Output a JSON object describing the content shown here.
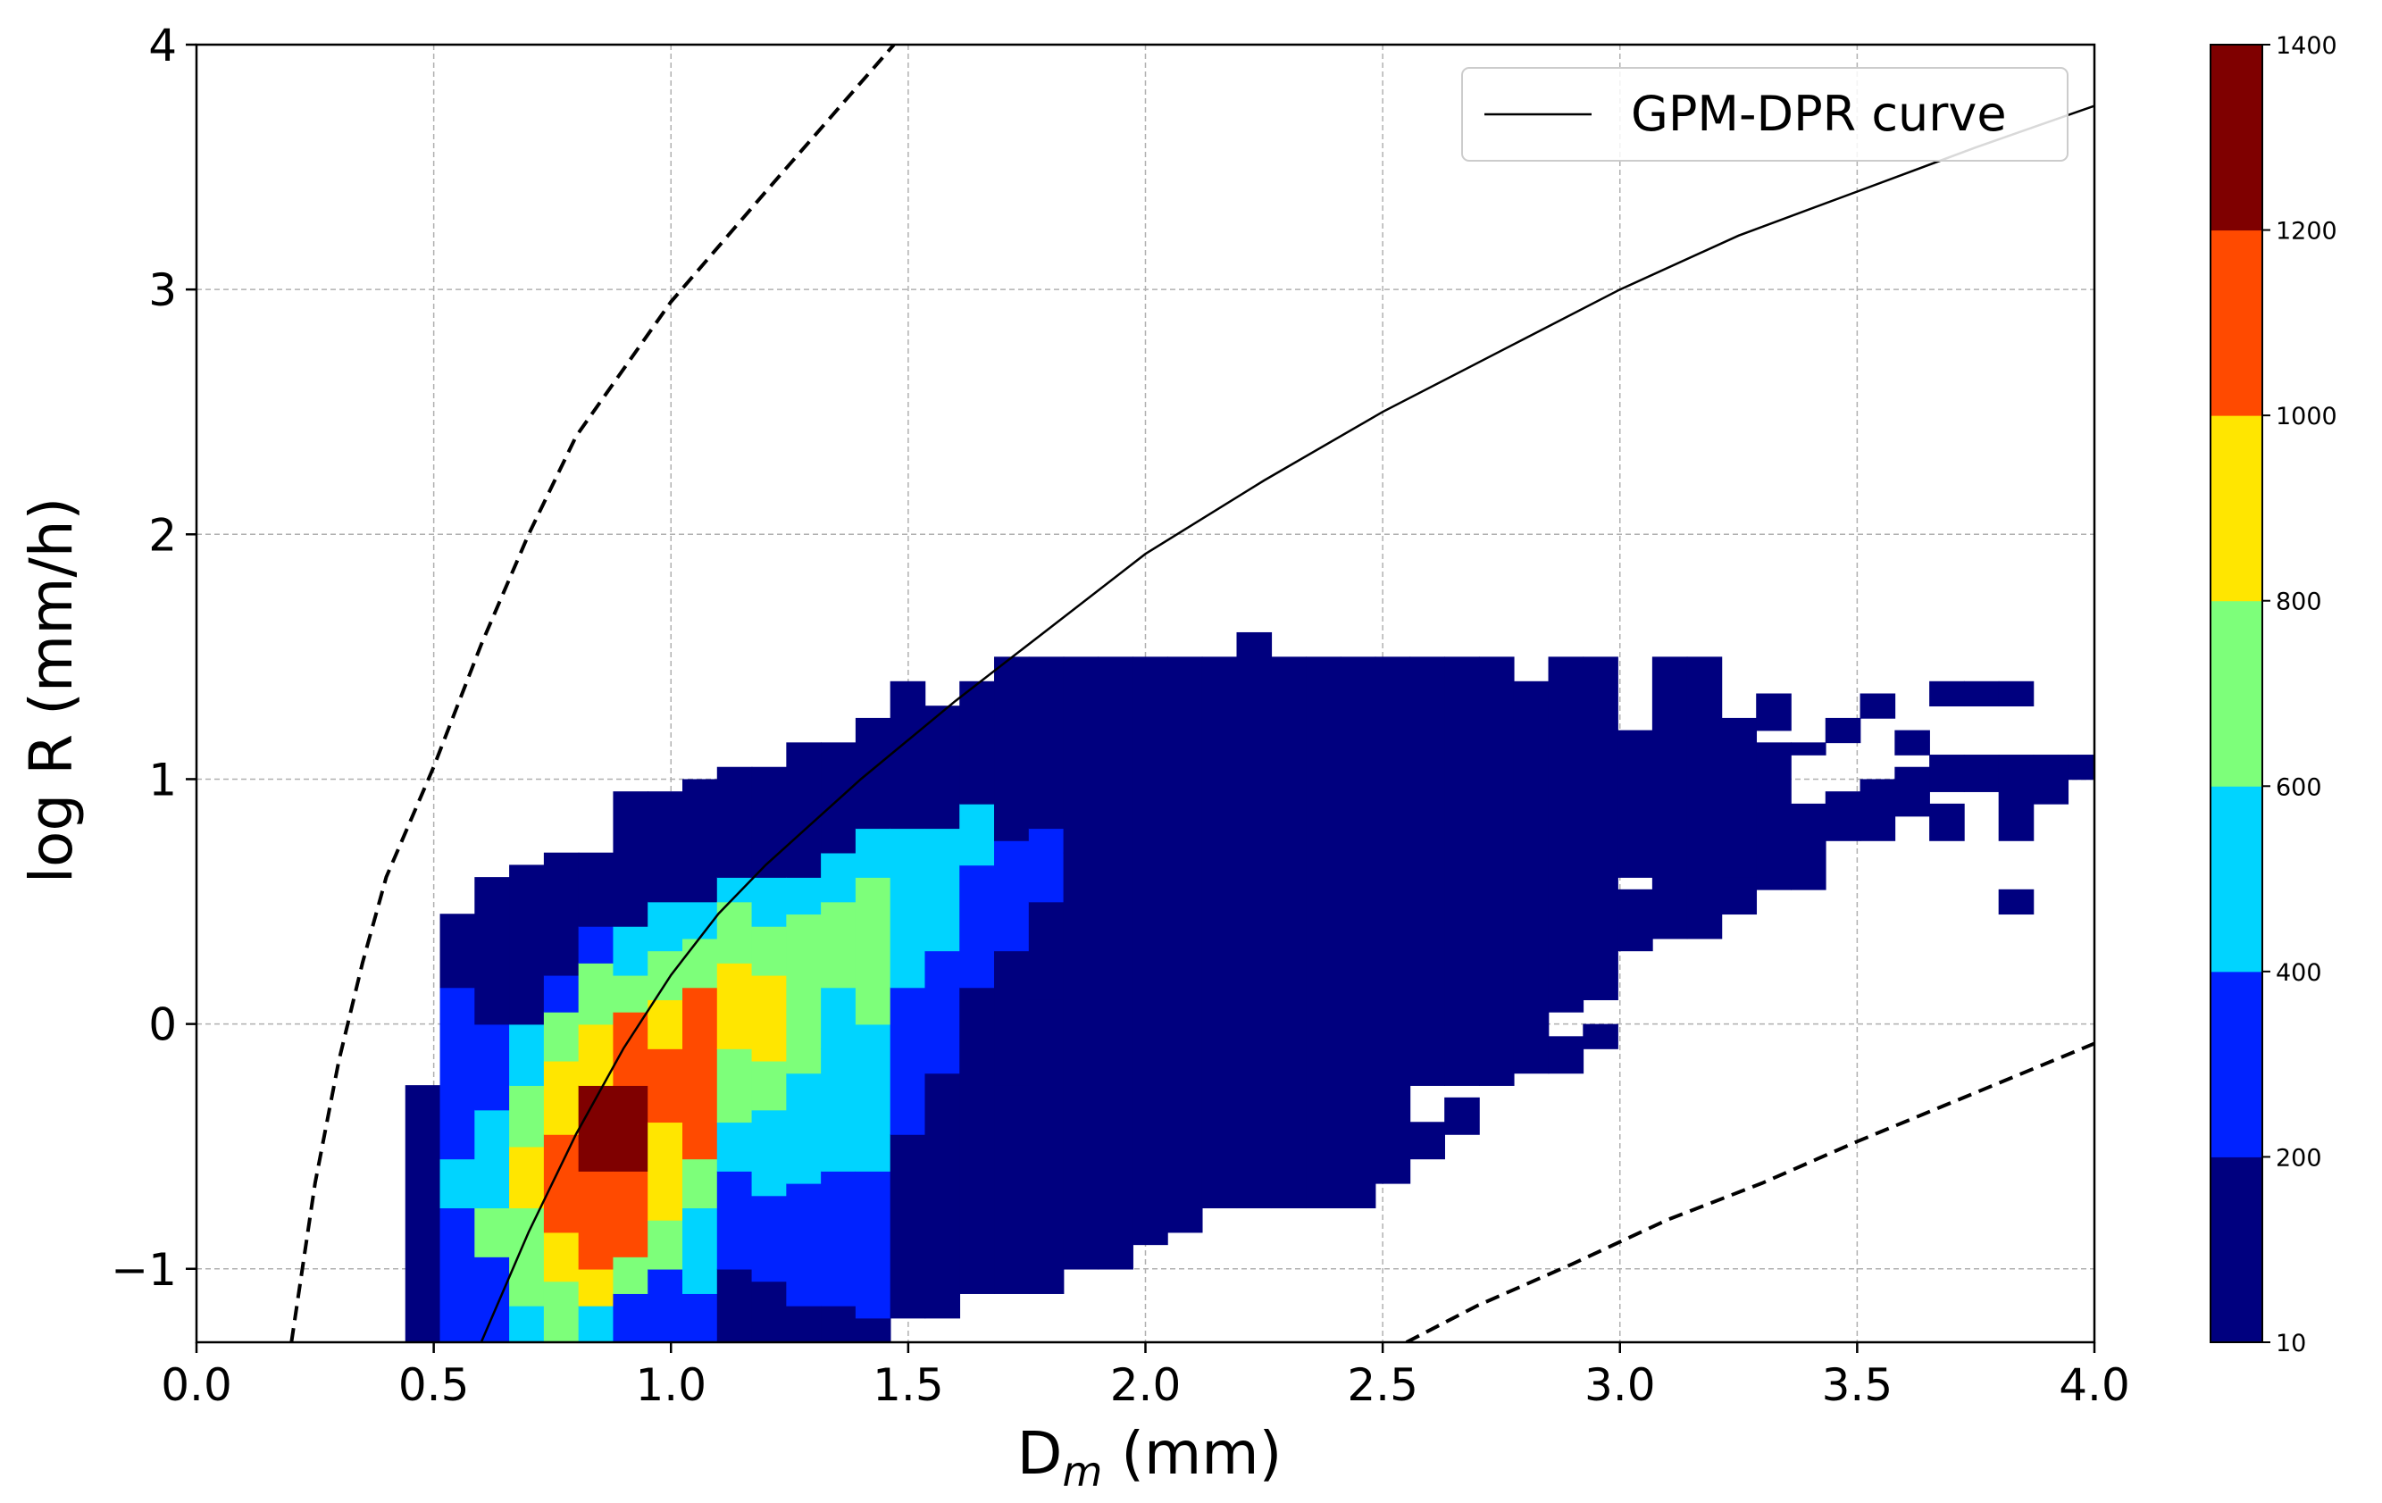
{
  "chart_data": {
    "type": "heatmap",
    "title": "",
    "xlabel_main": "D",
    "xlabel_sub": "m",
    "xlabel_unit": " (mm)",
    "ylabel": "log R (mm/h)",
    "xlim": [
      0.0,
      4.0
    ],
    "ylim": [
      -1.3,
      4.0
    ],
    "x_ticks": [
      0.0,
      0.5,
      1.0,
      1.5,
      2.0,
      2.5,
      3.0,
      3.5,
      4.0
    ],
    "x_tick_labels": [
      "0.0",
      "0.5",
      "1.0",
      "1.5",
      "2.0",
      "2.5",
      "3.0",
      "3.5",
      "4.0"
    ],
    "y_ticks": [
      -1,
      0,
      1,
      2,
      3,
      4
    ],
    "y_tick_labels": [
      "−1",
      "0",
      "1",
      "2",
      "3",
      "4"
    ],
    "grid": true,
    "legend": {
      "position": "top-right",
      "entries": [
        {
          "label": "GPM-DPR curve",
          "style": "solid"
        }
      ]
    },
    "colorbar": {
      "bounds": [
        10,
        200,
        400,
        600,
        800,
        1000,
        1200,
        1400
      ],
      "labels": [
        "10",
        "200",
        "400",
        "600",
        "800",
        "1000",
        "1200",
        "1400"
      ],
      "colors": [
        "#00007f",
        "#0022ff",
        "#00d4ff",
        "#7dff7a",
        "#ffe600",
        "#ff4a00",
        "#7f0000"
      ]
    },
    "bins": {
      "x_start": 0.44,
      "x_width": 0.073,
      "y_start": -1.3,
      "y_height": 0.1
    },
    "columns": [
      {
        "rows": [
          [
            -1.3,
            -0.25,
            0
          ]
        ]
      },
      {
        "rows": [
          [
            -1.3,
            -0.75,
            1
          ],
          [
            -0.75,
            -0.55,
            2
          ],
          [
            -0.55,
            0.15,
            1
          ],
          [
            0.15,
            0.45,
            0
          ]
        ]
      },
      {
        "rows": [
          [
            -1.3,
            -0.95,
            1
          ],
          [
            -0.95,
            -0.75,
            3
          ],
          [
            -0.75,
            -0.35,
            2
          ],
          [
            -0.35,
            0.0,
            1
          ],
          [
            0.0,
            0.6,
            0
          ]
        ]
      },
      {
        "rows": [
          [
            -1.3,
            -1.15,
            2
          ],
          [
            -1.15,
            -1.0,
            3
          ],
          [
            -1.0,
            -0.75,
            3
          ],
          [
            -0.75,
            -0.5,
            4
          ],
          [
            -0.5,
            -0.25,
            3
          ],
          [
            -0.25,
            0.0,
            2
          ],
          [
            0.0,
            0.65,
            0
          ]
        ]
      },
      {
        "rows": [
          [
            -1.3,
            -1.05,
            3
          ],
          [
            -1.05,
            -0.85,
            4
          ],
          [
            -0.85,
            -0.45,
            5
          ],
          [
            -0.45,
            -0.15,
            4
          ],
          [
            -0.15,
            0.05,
            3
          ],
          [
            0.05,
            0.2,
            1
          ],
          [
            0.2,
            0.7,
            0
          ]
        ]
      },
      {
        "rows": [
          [
            -1.3,
            -1.15,
            2
          ],
          [
            -1.15,
            -1.0,
            4
          ],
          [
            -1.0,
            -0.6,
            5
          ],
          [
            -0.6,
            -0.25,
            6
          ],
          [
            -0.25,
            0.0,
            4
          ],
          [
            0.0,
            0.25,
            3
          ],
          [
            0.25,
            0.4,
            1
          ],
          [
            0.4,
            0.7,
            0
          ]
        ]
      },
      {
        "rows": [
          [
            -1.3,
            -1.1,
            1
          ],
          [
            -1.1,
            -0.95,
            3
          ],
          [
            -0.95,
            -0.6,
            5
          ],
          [
            -0.6,
            -0.25,
            6
          ],
          [
            -0.25,
            0.05,
            5
          ],
          [
            0.05,
            0.2,
            3
          ],
          [
            0.2,
            0.4,
            2
          ],
          [
            0.4,
            0.95,
            0
          ]
        ]
      },
      {
        "rows": [
          [
            -1.3,
            -1.0,
            1
          ],
          [
            -1.0,
            -0.8,
            3
          ],
          [
            -0.8,
            -0.4,
            4
          ],
          [
            -0.4,
            -0.1,
            5
          ],
          [
            -0.1,
            0.1,
            4
          ],
          [
            0.1,
            0.3,
            3
          ],
          [
            0.3,
            0.5,
            2
          ],
          [
            0.5,
            0.95,
            0
          ]
        ]
      },
      {
        "rows": [
          [
            -1.3,
            -1.1,
            1
          ],
          [
            -1.1,
            -0.75,
            2
          ],
          [
            -0.75,
            -0.55,
            3
          ],
          [
            -0.55,
            -0.2,
            5
          ],
          [
            -0.2,
            0.15,
            5
          ],
          [
            0.15,
            0.35,
            3
          ],
          [
            0.35,
            0.5,
            2
          ],
          [
            0.5,
            1.0,
            0
          ]
        ]
      },
      {
        "rows": [
          [
            -1.3,
            -1.0,
            0
          ],
          [
            -1.0,
            -0.6,
            1
          ],
          [
            -0.6,
            -0.4,
            2
          ],
          [
            -0.4,
            -0.1,
            3
          ],
          [
            -0.1,
            0.25,
            4
          ],
          [
            0.25,
            0.5,
            3
          ],
          [
            0.5,
            0.6,
            2
          ],
          [
            0.6,
            1.05,
            0
          ]
        ]
      },
      {
        "rows": [
          [
            -1.3,
            -1.05,
            0
          ],
          [
            -1.05,
            -0.7,
            1
          ],
          [
            -0.7,
            -0.35,
            2
          ],
          [
            -0.35,
            -0.15,
            3
          ],
          [
            -0.15,
            0.2,
            4
          ],
          [
            0.2,
            0.4,
            3
          ],
          [
            0.4,
            0.6,
            2
          ],
          [
            0.6,
            1.05,
            0
          ]
        ]
      },
      {
        "rows": [
          [
            -1.3,
            -1.15,
            0
          ],
          [
            -1.15,
            -0.65,
            1
          ],
          [
            -0.65,
            -0.2,
            2
          ],
          [
            -0.2,
            0.05,
            3
          ],
          [
            0.05,
            0.45,
            3
          ],
          [
            0.45,
            0.6,
            2
          ],
          [
            0.6,
            1.15,
            0
          ]
        ]
      },
      {
        "rows": [
          [
            -1.3,
            -1.15,
            0
          ],
          [
            -1.15,
            -0.6,
            1
          ],
          [
            -0.6,
            -0.1,
            2
          ],
          [
            -0.1,
            0.15,
            2
          ],
          [
            0.15,
            0.5,
            3
          ],
          [
            0.5,
            0.7,
            2
          ],
          [
            0.7,
            1.15,
            0
          ]
        ]
      },
      {
        "rows": [
          [
            -1.3,
            -1.2,
            0
          ],
          [
            -1.2,
            -0.6,
            1
          ],
          [
            -0.6,
            0.0,
            2
          ],
          [
            0.0,
            0.3,
            3
          ],
          [
            0.3,
            0.6,
            3
          ],
          [
            0.6,
            0.8,
            2
          ],
          [
            0.8,
            1.25,
            0
          ]
        ]
      },
      {
        "rows": [
          [
            -1.2,
            -0.45,
            0
          ],
          [
            -0.45,
            0.15,
            1
          ],
          [
            0.15,
            0.6,
            2
          ],
          [
            0.6,
            0.8,
            2
          ],
          [
            0.8,
            1.4,
            0
          ]
        ]
      },
      {
        "rows": [
          [
            -1.2,
            -0.55,
            0
          ],
          [
            -0.55,
            -0.2,
            0
          ],
          [
            -0.2,
            0.3,
            1
          ],
          [
            0.3,
            0.8,
            2
          ],
          [
            0.8,
            1.3,
            0
          ]
        ]
      },
      {
        "rows": [
          [
            -1.1,
            -0.35,
            0
          ],
          [
            -0.35,
            0.15,
            0
          ],
          [
            0.15,
            0.65,
            1
          ],
          [
            0.65,
            0.9,
            2
          ],
          [
            0.9,
            1.4,
            0
          ]
        ]
      },
      {
        "rows": [
          [
            -1.1,
            -0.25,
            0
          ],
          [
            -0.25,
            0.3,
            0
          ],
          [
            0.3,
            0.75,
            1
          ],
          [
            0.75,
            1.5,
            0
          ]
        ]
      },
      {
        "rows": [
          [
            -1.1,
            0.1,
            0
          ],
          [
            0.1,
            0.5,
            0
          ],
          [
            0.5,
            0.8,
            1
          ],
          [
            0.8,
            1.5,
            0
          ]
        ]
      },
      {
        "rows": [
          [
            -1.0,
            0.2,
            0
          ],
          [
            0.2,
            0.7,
            0
          ],
          [
            0.7,
            1.5,
            0
          ]
        ]
      },
      {
        "rows": [
          [
            -1.0,
            1.5,
            0
          ]
        ]
      },
      {
        "rows": [
          [
            -0.9,
            1.5,
            0
          ]
        ]
      },
      {
        "rows": [
          [
            -0.85,
            1.5,
            0
          ]
        ]
      },
      {
        "rows": [
          [
            -0.75,
            1.5,
            0
          ]
        ]
      },
      {
        "rows": [
          [
            -0.75,
            1.6,
            0
          ]
        ]
      },
      {
        "rows": [
          [
            -0.75,
            1.5,
            0
          ]
        ]
      },
      {
        "rows": [
          [
            -0.75,
            1.5,
            0
          ]
        ]
      },
      {
        "rows": [
          [
            -0.75,
            1.5,
            0
          ]
        ]
      },
      {
        "rows": [
          [
            -0.65,
            1.5,
            0
          ]
        ]
      },
      {
        "rows": [
          [
            -0.55,
            -0.4,
            0
          ],
          [
            -0.25,
            1.5,
            0
          ]
        ]
      },
      {
        "rows": [
          [
            -0.45,
            -0.3,
            0
          ],
          [
            -0.25,
            1.5,
            0
          ]
        ]
      },
      {
        "rows": [
          [
            -0.25,
            1.5,
            0
          ]
        ]
      },
      {
        "rows": [
          [
            -0.2,
            1.25,
            0
          ],
          [
            1.25,
            1.4,
            0
          ]
        ]
      },
      {
        "rows": [
          [
            -0.2,
            -0.05,
            0
          ],
          [
            0.05,
            1.5,
            0
          ]
        ]
      },
      {
        "rows": [
          [
            -0.1,
            0.0,
            0
          ],
          [
            0.1,
            1.5,
            0
          ]
        ]
      },
      {
        "rows": [
          [
            0.3,
            0.55,
            0
          ],
          [
            0.6,
            1.2,
            0
          ]
        ]
      },
      {
        "rows": [
          [
            0.35,
            1.5,
            0
          ]
        ]
      },
      {
        "rows": [
          [
            0.35,
            1.5,
            0
          ]
        ]
      },
      {
        "rows": [
          [
            0.45,
            0.6,
            0
          ],
          [
            0.6,
            1.25,
            0
          ]
        ]
      },
      {
        "rows": [
          [
            0.55,
            1.15,
            0
          ],
          [
            1.2,
            1.35,
            0
          ]
        ]
      },
      {
        "rows": [
          [
            0.55,
            0.9,
            0
          ],
          [
            1.1,
            1.15,
            0
          ]
        ]
      },
      {
        "rows": [
          [
            0.75,
            0.95,
            0
          ],
          [
            1.15,
            1.25,
            0
          ]
        ]
      },
      {
        "rows": [
          [
            0.75,
            1.0,
            0
          ],
          [
            1.25,
            1.35,
            0
          ]
        ]
      },
      {
        "rows": [
          [
            0.85,
            1.05,
            0
          ],
          [
            1.1,
            1.2,
            0
          ]
        ]
      },
      {
        "rows": [
          [
            0.75,
            0.9,
            0
          ],
          [
            0.95,
            1.1,
            0
          ],
          [
            1.3,
            1.4,
            0
          ]
        ]
      },
      {
        "rows": [
          [
            0.95,
            1.0,
            0
          ],
          [
            1.0,
            1.1,
            0
          ],
          [
            1.3,
            1.4,
            0
          ]
        ]
      },
      {
        "rows": [
          [
            0.45,
            0.55,
            0
          ],
          [
            0.75,
            1.1,
            0
          ],
          [
            1.3,
            1.4,
            0
          ]
        ]
      },
      {
        "rows": [
          [
            0.9,
            1.0,
            0
          ],
          [
            1.0,
            1.1,
            0
          ]
        ]
      },
      {
        "rows": [
          [
            1.0,
            1.1,
            0
          ]
        ]
      },
      {
        "rows": [
          [
            1.3,
            1.4,
            0
          ]
        ]
      },
      {
        "rows": [
          [
            1.1,
            1.2,
            0
          ],
          [
            1.2,
            1.3,
            0
          ]
        ]
      },
      {
        "rows": [
          [
            1.1,
            1.2,
            0
          ]
        ]
      }
    ],
    "curves": [
      {
        "name": "GPM-DPR curve",
        "style": "solid",
        "x": [
          0.6,
          0.7,
          0.8,
          0.9,
          1.0,
          1.1,
          1.2,
          1.4,
          1.6,
          1.8,
          2.0,
          2.25,
          2.5,
          2.75,
          3.0,
          3.25,
          3.5,
          3.75,
          4.0
        ],
        "y": [
          -1.3,
          -0.85,
          -0.45,
          -0.1,
          0.2,
          0.45,
          0.65,
          1.0,
          1.32,
          1.62,
          1.92,
          2.22,
          2.5,
          2.75,
          3.0,
          3.22,
          3.4,
          3.58,
          3.75
        ]
      },
      {
        "style": "dashed",
        "x": [
          0.2,
          0.25,
          0.3,
          0.35,
          0.4,
          0.5,
          0.6,
          0.7,
          0.8,
          1.0,
          1.2,
          1.47
        ],
        "y": [
          -1.3,
          -0.65,
          -0.15,
          0.25,
          0.6,
          1.05,
          1.55,
          2.0,
          2.4,
          2.95,
          3.4,
          4.0
        ]
      },
      {
        "style": "dashed",
        "x": [
          2.55,
          2.7,
          2.9,
          3.1,
          3.3,
          3.5,
          3.75,
          4.0
        ],
        "y": [
          -1.3,
          -1.15,
          -0.98,
          -0.8,
          -0.65,
          -0.48,
          -0.28,
          -0.08
        ]
      }
    ]
  }
}
